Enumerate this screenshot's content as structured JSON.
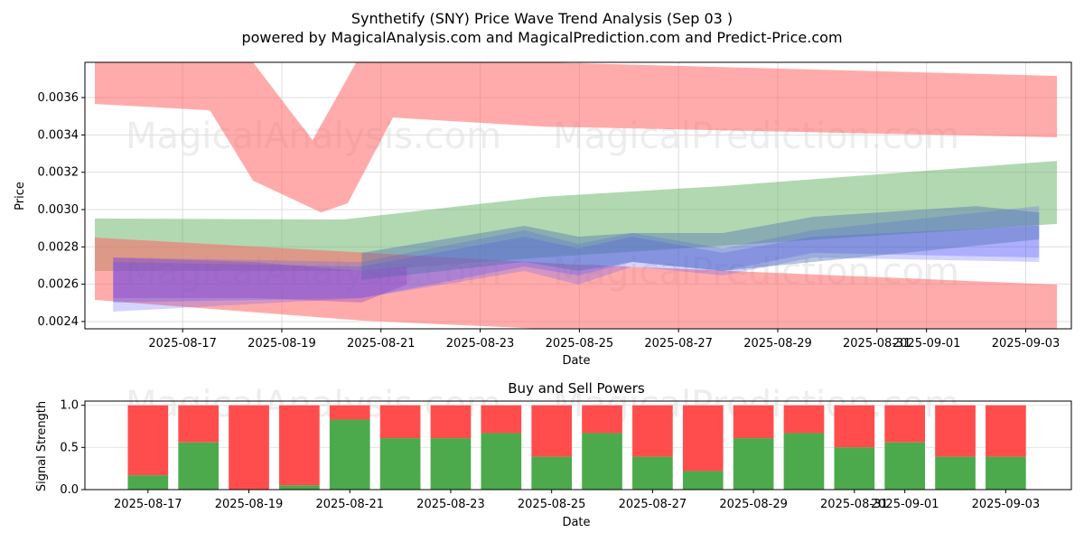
{
  "title": "Synthetify (SNY) Price Wave Trend Analysis (Sep 03 )",
  "subtitle": "powered by MagicalAnalysis.com and MagicalPrediction.com and Predict-Price.com",
  "watermark": [
    "MagicalAnalysis.com",
    "MagicalPrediction.com"
  ],
  "colors": {
    "red": "#ff6666",
    "green": "#66b266",
    "blue": "#5555ff",
    "steel": "#4a6fb0",
    "purple": "#8a3fbf",
    "buy": "#4caa4c",
    "sell": "#ff4d4d"
  },
  "chart_data": [
    {
      "type": "area",
      "title": "",
      "xlabel": "Date",
      "ylabel": "Price",
      "x_unit": "days since 2025-08-17",
      "xlim": [
        -1.97,
        17.92
      ],
      "ylim": [
        0.002361,
        0.003789
      ],
      "grid": true,
      "xticks": [
        {
          "v": 0,
          "label": "2025-08-17"
        },
        {
          "v": 2,
          "label": "2025-08-19"
        },
        {
          "v": 4,
          "label": "2025-08-21"
        },
        {
          "v": 6,
          "label": "2025-08-23"
        },
        {
          "v": 8,
          "label": "2025-08-25"
        },
        {
          "v": 10,
          "label": "2025-08-27"
        },
        {
          "v": 12,
          "label": "2025-08-29"
        },
        {
          "v": 14,
          "label": "2025-08-31"
        },
        {
          "v": 15,
          "label": "2025-09-01"
        },
        {
          "v": 17,
          "label": "2025-09-03"
        }
      ],
      "yticks": [
        {
          "v": 0.0024,
          "label": "0.0024"
        },
        {
          "v": 0.0026,
          "label": "0.0026"
        },
        {
          "v": 0.0028,
          "label": "0.0028"
        },
        {
          "v": 0.003,
          "label": "0.0030"
        },
        {
          "v": 0.0032,
          "label": "0.0032"
        },
        {
          "v": 0.0034,
          "label": "0.0034"
        },
        {
          "v": 0.0036,
          "label": "0.0036"
        }
      ],
      "bands": [
        {
          "name": "upper-red-band",
          "color": "red",
          "opacity": 0.55,
          "upper": [
            [
              -1.77,
              0.003789
            ],
            [
              1.42,
              0.003789
            ],
            [
              2.62,
              0.003372
            ],
            [
              3.5,
              0.003789
            ],
            [
              7.25,
              0.003789
            ],
            [
              17.63,
              0.003716
            ]
          ],
          "lower": [
            [
              -1.77,
              0.003566
            ],
            [
              0.55,
              0.003532
            ],
            [
              1.42,
              0.003155
            ],
            [
              2.79,
              0.002985
            ],
            [
              3.33,
              0.003034
            ],
            [
              4.24,
              0.003493
            ],
            [
              7.25,
              0.003445
            ],
            [
              17.63,
              0.003387
            ]
          ]
        },
        {
          "name": "green-band",
          "color": "green",
          "opacity": 0.5,
          "upper": [
            [
              -1.77,
              0.002952
            ],
            [
              3.24,
              0.002947
            ],
            [
              7.25,
              0.003068
            ],
            [
              10.89,
              0.003126
            ],
            [
              17.63,
              0.003261
            ]
          ],
          "lower": [
            [
              -1.77,
              0.002671
            ],
            [
              3.61,
              0.002671
            ],
            [
              7.25,
              0.002743
            ],
            [
              17.63,
              0.002923
            ]
          ]
        },
        {
          "name": "lower-red-band",
          "color": "red",
          "opacity": 0.55,
          "upper": [
            [
              -1.77,
              0.00285
            ],
            [
              7.98,
              0.002705
            ],
            [
              17.63,
              0.002598
            ]
          ],
          "lower": [
            [
              -1.77,
              0.002516
            ],
            [
              3.61,
              0.002405
            ],
            [
              7.25,
              0.002361
            ],
            [
              17.63,
              0.002361
            ]
          ]
        },
        {
          "name": "blue-band-1",
          "color": "blue",
          "opacity": 0.25,
          "upper": [
            [
              -1.4,
              0.002743
            ],
            [
              3.61,
              0.002719
            ],
            [
              6.89,
              0.002889
            ],
            [
              7.98,
              0.002816
            ],
            [
              9.07,
              0.002874
            ],
            [
              10.89,
              0.002792
            ],
            [
              12.71,
              0.002889
            ],
            [
              17.27,
              0.003019
            ]
          ],
          "lower": [
            [
              -1.4,
              0.002453
            ],
            [
              3.61,
              0.002526
            ],
            [
              6.89,
              0.002671
            ],
            [
              7.98,
              0.002598
            ],
            [
              9.07,
              0.002695
            ],
            [
              10.89,
              0.002647
            ],
            [
              12.71,
              0.002743
            ],
            [
              17.27,
              0.002719
            ]
          ]
        },
        {
          "name": "blue-band-2",
          "color": "blue",
          "opacity": 0.3,
          "upper": [
            [
              -1.4,
              0.002719
            ],
            [
              3.61,
              0.002695
            ],
            [
              6.89,
              0.002855
            ],
            [
              7.98,
              0.002792
            ],
            [
              9.07,
              0.002855
            ],
            [
              10.89,
              0.002768
            ],
            [
              12.71,
              0.002855
            ],
            [
              17.27,
              0.002913
            ]
          ],
          "lower": [
            [
              -1.4,
              0.002502
            ],
            [
              3.61,
              0.002526
            ],
            [
              6.89,
              0.002695
            ],
            [
              7.98,
              0.002647
            ],
            [
              9.07,
              0.002719
            ],
            [
              10.89,
              0.002671
            ],
            [
              12.71,
              0.002768
            ],
            [
              17.27,
              0.002743
            ]
          ]
        },
        {
          "name": "steel-band",
          "color": "steel",
          "opacity": 0.4,
          "upper": [
            [
              3.61,
              0.002768
            ],
            [
              6.89,
              0.002913
            ],
            [
              7.98,
              0.002855
            ],
            [
              9.07,
              0.002874
            ],
            [
              10.89,
              0.002874
            ],
            [
              12.71,
              0.002961
            ],
            [
              15.99,
              0.003019
            ],
            [
              17.27,
              0.002985
            ]
          ],
          "lower": [
            [
              3.61,
              0.002623
            ],
            [
              6.89,
              0.002719
            ],
            [
              7.98,
              0.002671
            ],
            [
              9.07,
              0.002719
            ],
            [
              10.89,
              0.002671
            ],
            [
              12.71,
              0.002719
            ],
            [
              17.27,
              0.00284
            ]
          ]
        },
        {
          "name": "purple-band",
          "color": "purple",
          "opacity": 0.35,
          "upper": [
            [
              -1.4,
              0.002743
            ],
            [
              1.42,
              0.002719
            ],
            [
              3.61,
              0.002671
            ],
            [
              4.52,
              0.002695
            ]
          ],
          "lower": [
            [
              -1.4,
              0.002526
            ],
            [
              1.42,
              0.002526
            ],
            [
              3.61,
              0.002502
            ],
            [
              4.52,
              0.002598
            ]
          ]
        }
      ]
    },
    {
      "type": "bar",
      "title": "Buy and Sell Powers",
      "xlabel": "Date",
      "ylabel": "Signal Strength",
      "stacked": true,
      "x_unit": "days since 2025-08-17",
      "xlim": [
        -1.25,
        18.3
      ],
      "ylim": [
        0,
        1.05
      ],
      "xticks": [
        {
          "v": 0,
          "label": "2025-08-17"
        },
        {
          "v": 2,
          "label": "2025-08-19"
        },
        {
          "v": 4,
          "label": "2025-08-21"
        },
        {
          "v": 6,
          "label": "2025-08-23"
        },
        {
          "v": 8,
          "label": "2025-08-25"
        },
        {
          "v": 10,
          "label": "2025-08-27"
        },
        {
          "v": 12,
          "label": "2025-08-29"
        },
        {
          "v": 14,
          "label": "2025-08-31"
        },
        {
          "v": 15,
          "label": "2025-09-01"
        },
        {
          "v": 17,
          "label": "2025-09-03"
        }
      ],
      "yticks": [
        {
          "v": 0,
          "label": "0.0"
        },
        {
          "v": 0.5,
          "label": "0.5"
        },
        {
          "v": 1,
          "label": "1.0"
        }
      ],
      "buy": [
        0.17,
        0.56,
        0.0,
        0.05,
        0.83,
        0.61,
        0.61,
        0.67,
        0.39,
        0.67,
        0.39,
        0.22,
        0.61,
        0.67,
        0.5,
        0.56,
        0.39,
        0.39
      ]
    }
  ]
}
